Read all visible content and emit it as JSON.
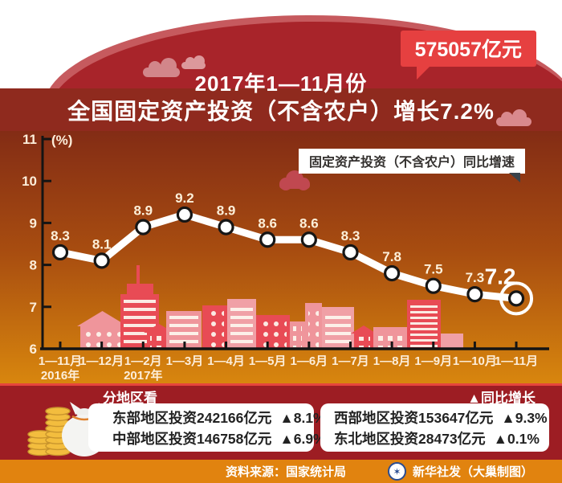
{
  "header": {
    "badge": "575057亿元",
    "title_line1": "2017年1—11月份",
    "title_line2": "全国固定资产投资（不含农户）增长7.2%"
  },
  "legend": "固定资产投资（不含农户）同比增速",
  "chart_data": {
    "type": "line",
    "title": "2017年1—11月份全国固定资产投资（不含农户）增长7.2%",
    "series_name": "固定资产投资（不含农户）同比增速",
    "unit_label": "(%)",
    "categories": [
      "1—11月",
      "1—12月",
      "1—2月",
      "1—3月",
      "1—4月",
      "1—5月",
      "1—6月",
      "1—7月",
      "1—8月",
      "1—9月",
      "1—10月",
      "1—11月"
    ],
    "sub_labels": {
      "0": "2016年",
      "2": "2017年"
    },
    "values": [
      8.3,
      8.1,
      8.9,
      9.2,
      8.9,
      8.6,
      8.6,
      8.3,
      7.8,
      7.5,
      7.3,
      7.2
    ],
    "ylim": [
      6,
      11
    ],
    "yticks": [
      6,
      7,
      8,
      9,
      10,
      11
    ],
    "grid": false,
    "legend_position": "top-right",
    "highlight_last": true
  },
  "regions": {
    "heading_left": "分地区看",
    "heading_right": "▲同比增长",
    "left_rows": [
      {
        "label": "东部地区投资242166亿元",
        "change": "▲8.1%"
      },
      {
        "label": "中部地区投资146758亿元",
        "change": "▲6.9%"
      }
    ],
    "right_rows": [
      {
        "label": "西部地区投资153647亿元",
        "change": "▲9.3%"
      },
      {
        "label": "东北地区投资28473亿元",
        "change": "▲0.1%"
      }
    ]
  },
  "footer": {
    "source": "资料来源：国家统计局",
    "credit": "新华社发（大巢制图）"
  },
  "colors": {
    "dome_red": "#a8242a",
    "dome_rim": "#c65a5e",
    "title_band": "#8f2a1e",
    "badge_red": "#e64040",
    "chart_top": "#832c15",
    "chart_bottom": "#d8860e",
    "line": "#ffffff",
    "marker_ring": "#161616",
    "building_red": "#e84b55",
    "building_pink": "#ef959b",
    "regions_band": "#9d1d23",
    "footer_orange": "#e1830f",
    "coin_gold": "#f3bd3e"
  }
}
